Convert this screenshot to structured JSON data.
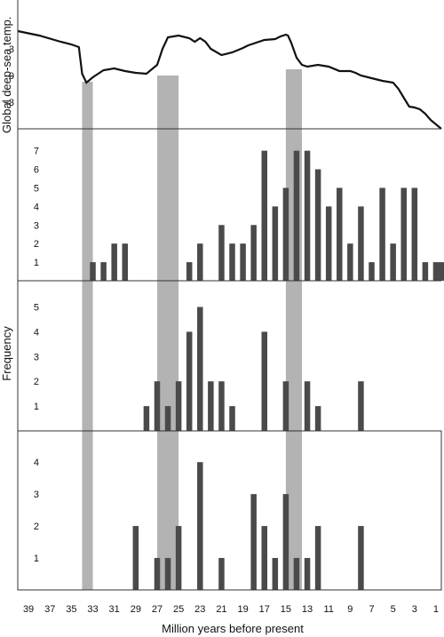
{
  "chart_data": {
    "type": "bar",
    "xlabel": "Million years before present",
    "x_ticks": [
      "39",
      "37",
      "35",
      "33",
      "31",
      "29",
      "27",
      "25",
      "23",
      "21",
      "19",
      "17",
      "15",
      "13",
      "11",
      "9",
      "7",
      "5",
      "3",
      "1"
    ],
    "xlim": [
      40,
      0.5
    ],
    "frequency_label": "Frequency",
    "colors": {
      "bars": "#4a4a4a",
      "highlight": "#b3b3b3",
      "line": "#111111",
      "frame": "#333333"
    },
    "highlight_bands": [
      [
        34,
        33
      ],
      [
        27,
        25
      ],
      [
        15,
        13.5
      ]
    ],
    "temperature": {
      "type": "line",
      "ylabel": "Global deep-sea temp.",
      "yticks": [
        "3",
        "0",
        "−3"
      ],
      "ylim": [
        -6,
        8
      ],
      "x": [
        40,
        38,
        36,
        35,
        34.3,
        34,
        33.6,
        33,
        32,
        31,
        30,
        29,
        28,
        27,
        26.5,
        26,
        25,
        24,
        23.5,
        23,
        22.5,
        22,
        21,
        20,
        19,
        18.5,
        18,
        17,
        16,
        15.5,
        15,
        14.8,
        14.5,
        14,
        13.5,
        13,
        12,
        11,
        10,
        9,
        8.5,
        8,
        7,
        6,
        5,
        4.5,
        4,
        3.5,
        3,
        2.5,
        2,
        1.5,
        1,
        0.5
      ],
      "y": [
        5,
        4.5,
        3.8,
        3.5,
        3.2,
        0.2,
        -0.8,
        -0.2,
        0.6,
        0.8,
        0.5,
        0.3,
        0.2,
        1.2,
        3,
        4.3,
        4.5,
        4.2,
        3.8,
        4.2,
        3.8,
        3,
        2.3,
        2.6,
        3.1,
        3.4,
        3.6,
        4,
        4.1,
        4.4,
        4.6,
        4.5,
        3.7,
        2,
        1.2,
        1,
        1.2,
        1,
        0.5,
        0.5,
        0.3,
        0,
        -0.3,
        -0.6,
        -0.8,
        -1.5,
        -2.5,
        -3.5,
        -3.6,
        -3.8,
        -4.3,
        -5,
        -5.5,
        -6
      ]
    },
    "panels": [
      {
        "yticks": [
          "1",
          "2",
          "3",
          "4",
          "5",
          "6",
          "7"
        ],
        "ymax": 7.7,
        "x": [
          33,
          32,
          31,
          30,
          24,
          23,
          21,
          20,
          19,
          18,
          17,
          16,
          15,
          14,
          13,
          12,
          11,
          10,
          9,
          8,
          7,
          6,
          5,
          4,
          3,
          2,
          1,
          0.5
        ],
        "values": [
          1,
          1,
          2,
          2,
          1,
          2,
          3,
          2,
          2,
          3,
          7,
          4,
          5,
          7,
          7,
          6,
          4,
          5,
          2,
          4,
          1,
          5,
          2,
          5,
          5,
          1,
          1,
          1
        ]
      },
      {
        "yticks": [
          "1",
          "2",
          "3",
          "4",
          "5"
        ],
        "ymax": 5.7,
        "x": [
          28,
          27,
          26,
          25,
          24,
          23,
          22,
          21,
          20,
          17,
          15,
          13,
          12,
          8
        ],
        "values": [
          1,
          2,
          1,
          2,
          4,
          5,
          2,
          2,
          1,
          4,
          2,
          2,
          1,
          2
        ]
      },
      {
        "yticks": [
          "1",
          "2",
          "3",
          "4"
        ],
        "ymax": 4.7,
        "x": [
          29,
          27,
          26,
          25,
          23,
          21,
          18,
          17,
          16,
          15,
          14,
          13,
          12,
          8
        ],
        "values": [
          2,
          1,
          1,
          2,
          4,
          1,
          3,
          2,
          1,
          3,
          1,
          1,
          2,
          2
        ]
      }
    ]
  }
}
